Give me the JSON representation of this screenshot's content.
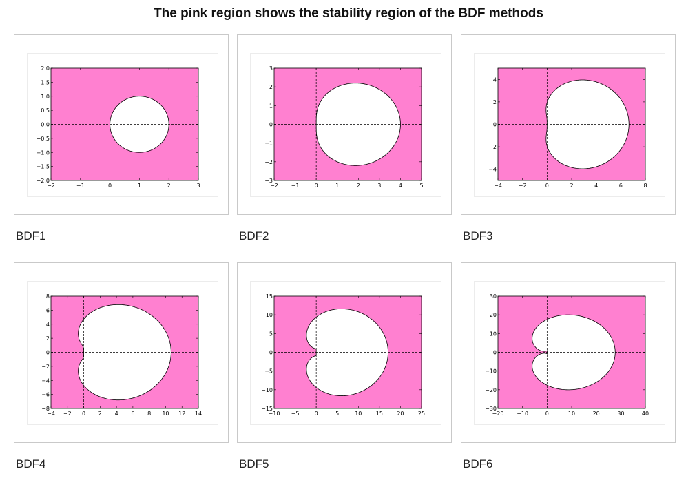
{
  "page": {
    "title": "The pink region shows the stability region of the BDF methods"
  },
  "colors": {
    "stable_fill": "#ff80d0",
    "unstable_fill": "#ffffff",
    "axis_line": "#000000"
  },
  "chart_data": [
    {
      "type": "area",
      "caption": "BDF1",
      "order": 1,
      "xlim": [
        -2,
        3
      ],
      "ylim": [
        -2.0,
        2.0
      ],
      "xticks": [
        -2,
        -1,
        0,
        1,
        2,
        3
      ],
      "yticks": [
        -2.0,
        -1.5,
        -1.0,
        -0.5,
        0.0,
        0.5,
        1.0,
        1.5,
        2.0
      ],
      "xticklabels": [
        "−2",
        "−1",
        "0",
        "1",
        "2",
        "3"
      ],
      "yticklabels": [
        "−2.0",
        "−1.5",
        "−1.0",
        "−0.5",
        "0.0",
        "0.5",
        "1.0",
        "1.5",
        "2.0"
      ],
      "grid": false
    },
    {
      "type": "area",
      "caption": "BDF2",
      "order": 2,
      "xlim": [
        -2,
        5
      ],
      "ylim": [
        -3,
        3
      ],
      "xticks": [
        -2,
        -1,
        0,
        1,
        2,
        3,
        4,
        5
      ],
      "yticks": [
        -3,
        -2,
        -1,
        0,
        1,
        2,
        3
      ],
      "xticklabels": [
        "−2",
        "−1",
        "0",
        "1",
        "2",
        "3",
        "4",
        "5"
      ],
      "yticklabels": [
        "−3",
        "−2",
        "−1",
        "0",
        "1",
        "2",
        "3"
      ],
      "grid": false
    },
    {
      "type": "area",
      "caption": "BDF3",
      "order": 3,
      "xlim": [
        -4,
        8
      ],
      "ylim": [
        -5,
        5
      ],
      "xticks": [
        -4,
        -2,
        0,
        2,
        4,
        6,
        8
      ],
      "yticks": [
        -4,
        -2,
        0,
        2,
        4
      ],
      "xticklabels": [
        "−4",
        "−2",
        "0",
        "2",
        "4",
        "6",
        "8"
      ],
      "yticklabels": [
        "−4",
        "−2",
        "0",
        "2",
        "4"
      ],
      "grid": false
    },
    {
      "type": "area",
      "caption": "BDF4",
      "order": 4,
      "xlim": [
        -4,
        14
      ],
      "ylim": [
        -8,
        8
      ],
      "xticks": [
        -4,
        -2,
        0,
        2,
        4,
        6,
        8,
        10,
        12,
        14
      ],
      "yticks": [
        -8,
        -6,
        -4,
        -2,
        0,
        2,
        4,
        6,
        8
      ],
      "xticklabels": [
        "−4",
        "−2",
        "0",
        "2",
        "4",
        "6",
        "8",
        "10",
        "12",
        "14"
      ],
      "yticklabels": [
        "−8",
        "−6",
        "−4",
        "−2",
        "0",
        "2",
        "4",
        "6",
        "8"
      ],
      "grid": false
    },
    {
      "type": "area",
      "caption": "BDF5",
      "order": 5,
      "xlim": [
        -10,
        25
      ],
      "ylim": [
        -15,
        15
      ],
      "xticks": [
        -10,
        -5,
        0,
        5,
        10,
        15,
        20,
        25
      ],
      "yticks": [
        -15,
        -10,
        -5,
        0,
        5,
        10,
        15
      ],
      "xticklabels": [
        "−10",
        "−5",
        "0",
        "5",
        "10",
        "15",
        "20",
        "25"
      ],
      "yticklabels": [
        "−15",
        "−10",
        "−5",
        "0",
        "5",
        "10",
        "15"
      ],
      "grid": false
    },
    {
      "type": "area",
      "caption": "BDF6",
      "order": 6,
      "xlim": [
        -20,
        40
      ],
      "ylim": [
        -30,
        30
      ],
      "xticks": [
        -20,
        -10,
        0,
        10,
        20,
        30,
        40
      ],
      "yticks": [
        -30,
        -20,
        -10,
        0,
        10,
        20,
        30
      ],
      "xticklabels": [
        "−20",
        "−10",
        "0",
        "10",
        "20",
        "30",
        "40"
      ],
      "yticklabels": [
        "−30",
        "−20",
        "−10",
        "0",
        "10",
        "20",
        "30"
      ],
      "grid": false
    }
  ]
}
